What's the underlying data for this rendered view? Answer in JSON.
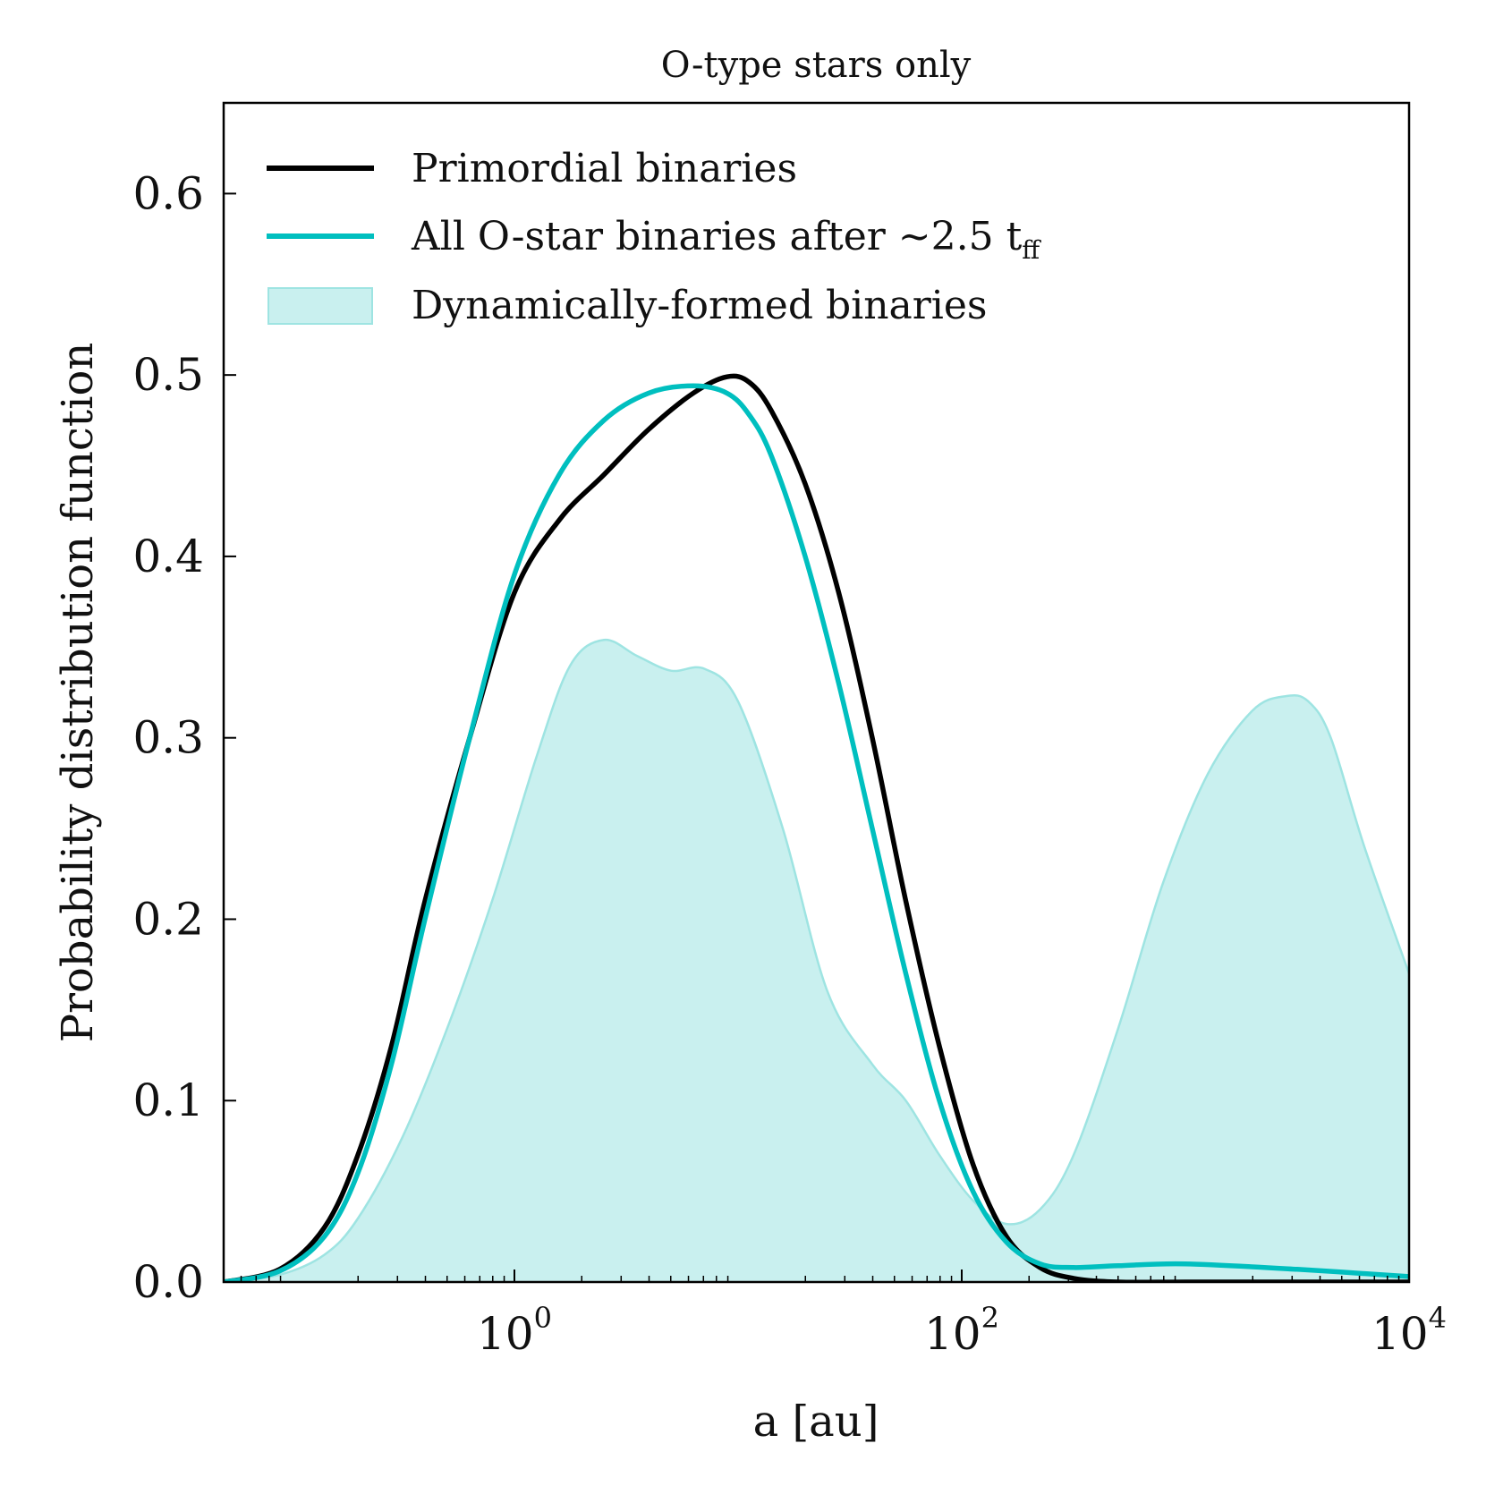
{
  "chart_data": {
    "type": "line",
    "title": "O-type stars only",
    "xlabel": "a [au]",
    "ylabel": "Probability distribution function",
    "x_scale": "log",
    "xlim_log10": [
      -1.3,
      4.0
    ],
    "ylim": [
      0.0,
      0.65
    ],
    "x_ticks": [
      {
        "log10": 0,
        "base": "10",
        "exp": "0"
      },
      {
        "log10": 2,
        "base": "10",
        "exp": "2"
      },
      {
        "log10": 4,
        "base": "10",
        "exp": "4"
      }
    ],
    "y_ticks": [
      {
        "value": 0.0,
        "label": "0.0"
      },
      {
        "value": 0.1,
        "label": "0.1"
      },
      {
        "value": 0.2,
        "label": "0.2"
      },
      {
        "value": 0.3,
        "label": "0.3"
      },
      {
        "value": 0.4,
        "label": "0.4"
      },
      {
        "value": 0.5,
        "label": "0.5"
      },
      {
        "value": 0.6,
        "label": "0.6"
      }
    ],
    "legend_position": "top-left",
    "series": [
      {
        "name": "Primordial binaries",
        "kind": "line",
        "color": "#000000",
        "log10_x": [
          -1.3,
          -1.05,
          -0.85,
          -0.7,
          -0.55,
          -0.4,
          -0.2,
          0.0,
          0.2,
          0.4,
          0.6,
          0.8,
          0.95,
          1.05,
          1.15,
          1.3,
          1.45,
          1.6,
          1.75,
          1.9,
          2.05,
          2.2,
          2.35,
          2.5,
          2.7,
          3.0,
          3.5,
          4.0
        ],
        "y": [
          0.0,
          0.007,
          0.03,
          0.07,
          0.13,
          0.21,
          0.3,
          0.38,
          0.42,
          0.445,
          0.47,
          0.49,
          0.499,
          0.496,
          0.48,
          0.44,
          0.38,
          0.3,
          0.21,
          0.13,
          0.065,
          0.025,
          0.008,
          0.002,
          0.0,
          0.0,
          0.0,
          0.0
        ]
      },
      {
        "name": "All O-star binaries after ~2.5 t_ff",
        "label_parts": {
          "main": "All O-star binaries after ∼2.5 t",
          "sub": "ff"
        },
        "kind": "line",
        "color": "#00bfbf",
        "log10_x": [
          -1.3,
          -1.05,
          -0.85,
          -0.7,
          -0.55,
          -0.4,
          -0.2,
          0.0,
          0.2,
          0.4,
          0.6,
          0.8,
          0.95,
          1.05,
          1.15,
          1.3,
          1.45,
          1.6,
          1.75,
          1.9,
          2.05,
          2.2,
          2.35,
          2.5,
          2.7,
          3.0,
          3.5,
          4.0
        ],
        "y": [
          0.0,
          0.006,
          0.025,
          0.06,
          0.12,
          0.2,
          0.3,
          0.39,
          0.445,
          0.475,
          0.49,
          0.494,
          0.49,
          0.478,
          0.455,
          0.4,
          0.33,
          0.25,
          0.17,
          0.1,
          0.05,
          0.022,
          0.01,
          0.008,
          0.009,
          0.01,
          0.007,
          0.003
        ]
      },
      {
        "name": "Dynamically-formed binaries",
        "kind": "area",
        "color": "#00bfbf",
        "fill_color": "#c9f0ef",
        "edge_color": "#9ee4e2",
        "log10_x": [
          -1.3,
          -1.05,
          -0.85,
          -0.7,
          -0.5,
          -0.3,
          -0.1,
          0.1,
          0.25,
          0.4,
          0.55,
          0.7,
          0.85,
          1.0,
          1.2,
          1.4,
          1.6,
          1.75,
          1.9,
          2.05,
          2.2,
          2.35,
          2.5,
          2.7,
          2.9,
          3.1,
          3.3,
          3.45,
          3.55,
          3.65,
          3.8,
          4.0
        ],
        "y": [
          0.0,
          0.004,
          0.015,
          0.035,
          0.08,
          0.14,
          0.21,
          0.29,
          0.34,
          0.354,
          0.345,
          0.337,
          0.338,
          0.32,
          0.25,
          0.16,
          0.12,
          0.1,
          0.07,
          0.045,
          0.032,
          0.04,
          0.07,
          0.14,
          0.22,
          0.28,
          0.315,
          0.323,
          0.32,
          0.3,
          0.24,
          0.17
        ]
      }
    ]
  }
}
